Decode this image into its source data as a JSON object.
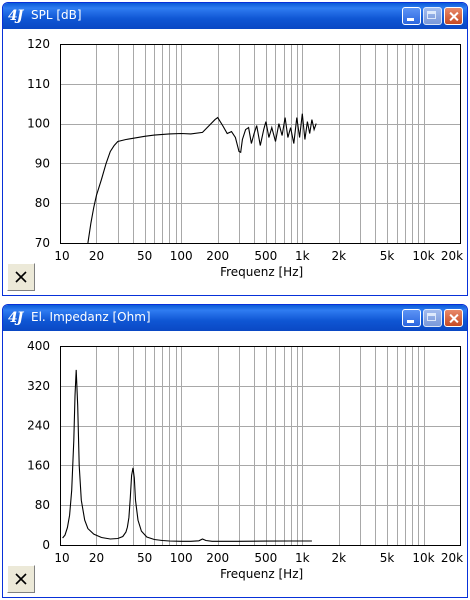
{
  "windows": [
    {
      "title": "SPL [dB]",
      "app_icon": "4J",
      "buttons": [
        "minimize",
        "maximize",
        "close"
      ]
    },
    {
      "title": "El. Impedanz [Ohm]",
      "app_icon": "4J",
      "buttons": [
        "minimize",
        "maximize",
        "close"
      ]
    }
  ],
  "icons": {
    "reset": "close-x-icon",
    "app": "app-logo-icon"
  },
  "chart_data": [
    {
      "type": "line",
      "xlabel": "Frequenz [Hz]",
      "ylabel": "",
      "xscale": "log",
      "xlim": [
        10,
        20000
      ],
      "ylim": [
        70,
        120
      ],
      "grid": true,
      "x_tick_labels": [
        "10",
        "20",
        "50",
        "100",
        "200",
        "500",
        "1k",
        "2k",
        "5k",
        "10k",
        "20k"
      ],
      "x_ticks": [
        10,
        20,
        50,
        100,
        200,
        500,
        1000,
        2000,
        5000,
        10000,
        20000
      ],
      "y_ticks": [
        70,
        80,
        90,
        100,
        110,
        120
      ],
      "series": [
        {
          "x": [
            17,
            18,
            19,
            20,
            22,
            24,
            26,
            28,
            30,
            35,
            40,
            50,
            60,
            80,
            100,
            120,
            150,
            170,
            190,
            200,
            220,
            240,
            260,
            280,
            300,
            310,
            320,
            340,
            360,
            380,
            400,
            420,
            450,
            480,
            500,
            530,
            560,
            600,
            640,
            680,
            720,
            760,
            800,
            850,
            900,
            950,
            1000,
            1050,
            1100,
            1150,
            1200,
            1250,
            1300
          ],
          "y": [
            70,
            75,
            79,
            82,
            86,
            90,
            93,
            94.5,
            95.5,
            96,
            96.3,
            96.8,
            97.1,
            97.4,
            97.5,
            97.4,
            97.8,
            99.5,
            101,
            101.5,
            99.5,
            97.5,
            98,
            96.5,
            93,
            92.8,
            96,
            98.5,
            99,
            95,
            97.5,
            99.5,
            94.5,
            98.5,
            100.5,
            96.5,
            99,
            95.5,
            100,
            97,
            101.5,
            96.5,
            99,
            95,
            101.5,
            96.5,
            102.5,
            96,
            100.5,
            97.5,
            101,
            98.5,
            100
          ]
        }
      ]
    },
    {
      "type": "line",
      "xlabel": "Frequenz [Hz]",
      "ylabel": "",
      "xscale": "log",
      "xlim": [
        10,
        20000
      ],
      "ylim": [
        0,
        400
      ],
      "grid": true,
      "x_tick_labels": [
        "10",
        "20",
        "50",
        "100",
        "200",
        "500",
        "1k",
        "2k",
        "5k",
        "10k",
        "20k"
      ],
      "x_ticks": [
        10,
        20,
        50,
        100,
        200,
        500,
        1000,
        2000,
        5000,
        10000,
        20000
      ],
      "y_ticks": [
        0,
        80,
        160,
        240,
        320,
        400
      ],
      "series": [
        {
          "x": [
            10.5,
            11,
            11.5,
            12,
            12.5,
            13,
            13.3,
            13.6,
            14,
            14.4,
            15,
            16,
            17,
            19,
            22,
            26,
            30,
            33,
            35,
            36,
            37,
            38,
            39,
            40,
            41,
            42,
            44,
            47,
            52,
            60,
            70,
            80,
            100,
            120,
            140,
            150,
            160,
            180,
            220,
            300,
            500,
            800,
            1200
          ],
          "y": [
            14,
            20,
            35,
            60,
            110,
            210,
            300,
            352,
            280,
            160,
            90,
            50,
            33,
            22,
            15,
            12,
            13,
            17,
            26,
            36,
            55,
            95,
            140,
            155,
            135,
            90,
            50,
            28,
            16,
            11,
            9,
            8,
            7.5,
            7.5,
            8.5,
            12,
            9,
            7.5,
            7.5,
            7.5,
            7.8,
            8,
            8
          ]
        }
      ]
    }
  ]
}
